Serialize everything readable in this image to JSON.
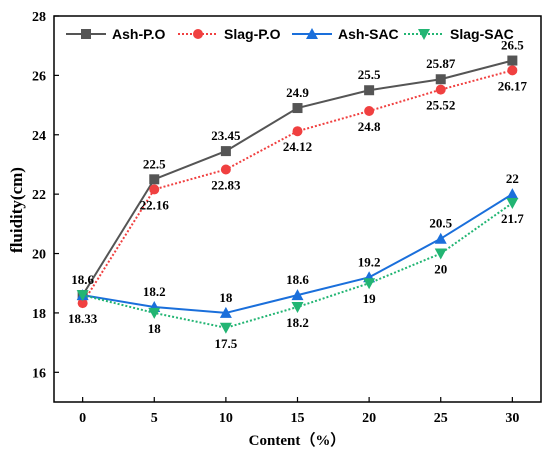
{
  "chart_data": {
    "type": "line",
    "x": [
      0,
      5,
      10,
      15,
      20,
      25,
      30
    ],
    "xlabel": "Content（%）",
    "ylabel": "fluidity(cm)",
    "xlim": [
      -2,
      32
    ],
    "ylim": [
      15,
      28
    ],
    "x_ticks": [
      "0",
      "5",
      "10",
      "15",
      "20",
      "25",
      "30"
    ],
    "y_ticks": [
      "16",
      "18",
      "20",
      "22",
      "24",
      "26",
      "28"
    ],
    "grid": false,
    "legend_position": "top",
    "series": [
      {
        "name": "Ash-P.O",
        "values": [
          18.6,
          22.5,
          23.45,
          24.9,
          25.5,
          25.87,
          26.5
        ],
        "labels": [
          "18.6",
          "22.5",
          "23.45",
          "24.9",
          "25.5",
          "25.87",
          "26.5"
        ],
        "color": "#555555",
        "marker": "square",
        "line_style": "solid",
        "label_position": "above"
      },
      {
        "name": "Slag-P.O",
        "values": [
          18.33,
          22.16,
          22.83,
          24.12,
          24.8,
          25.52,
          26.17
        ],
        "labels": [
          "18.33",
          "22.16",
          "22.83",
          "24.12",
          "24.8",
          "25.52",
          "26.17"
        ],
        "color": "#f04040",
        "marker": "circle",
        "line_style": "dotted",
        "label_position": "below"
      },
      {
        "name": "Ash-SAC",
        "values": [
          18.6,
          18.2,
          18.0,
          18.6,
          19.2,
          20.5,
          22.0
        ],
        "labels": [
          "",
          "18.2",
          "18",
          "18.6",
          "19.2",
          "20.5",
          "22"
        ],
        "color": "#1a6fdb",
        "marker": "triangle-up",
        "line_style": "solid",
        "label_position": "above"
      },
      {
        "name": "Slag-SAC",
        "values": [
          18.6,
          18.0,
          17.5,
          18.2,
          19.0,
          20.0,
          21.7
        ],
        "labels": [
          "",
          "18",
          "17.5",
          "18.2",
          "19",
          "20",
          "21.7"
        ],
        "color": "#22b573",
        "marker": "triangle-down",
        "line_style": "dotted",
        "label_position": "below"
      }
    ]
  }
}
